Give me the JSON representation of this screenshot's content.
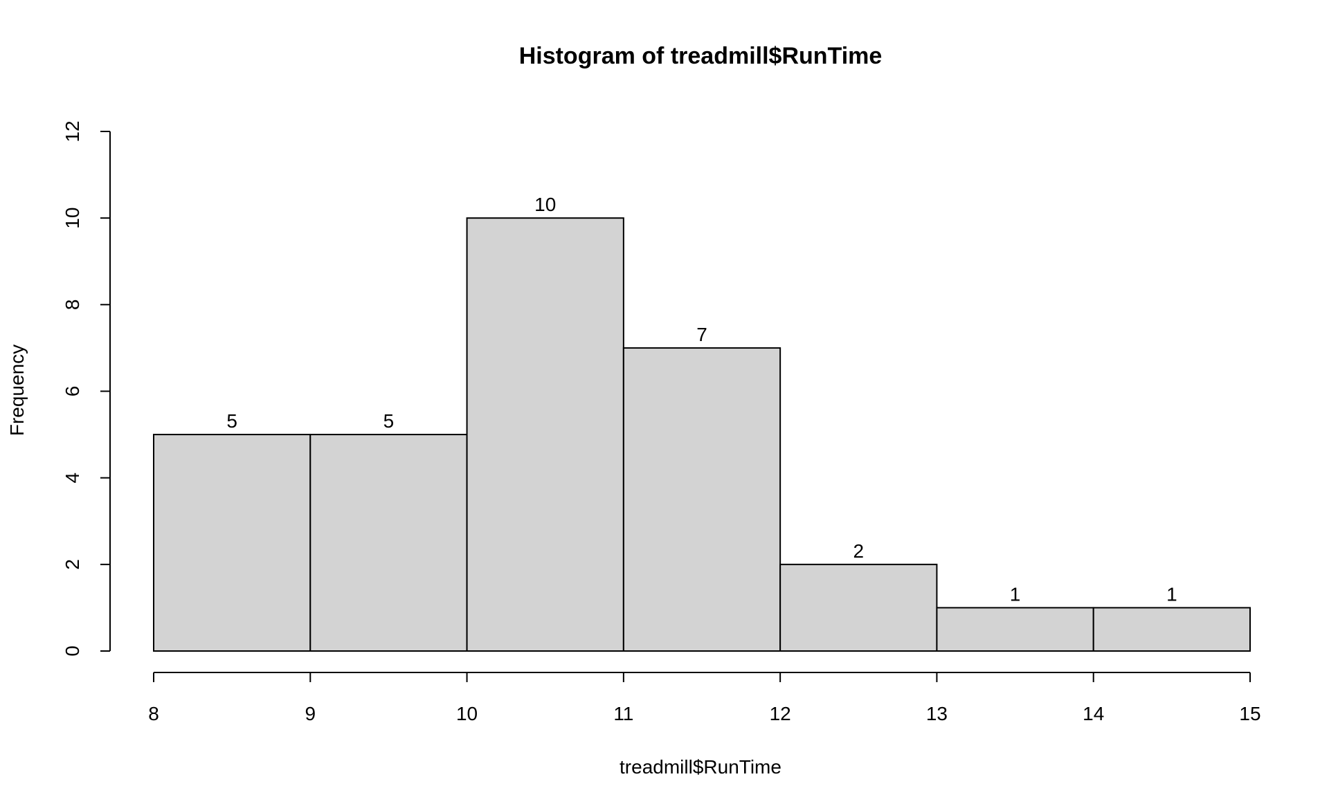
{
  "chart_data": {
    "type": "bar",
    "title": "Histogram of treadmill$RunTime",
    "xlabel": "treadmill$RunTime",
    "ylabel": "Frequency",
    "bins": [
      {
        "start": 8,
        "end": 9,
        "count": 5
      },
      {
        "start": 9,
        "end": 10,
        "count": 5
      },
      {
        "start": 10,
        "end": 11,
        "count": 10
      },
      {
        "start": 11,
        "end": 12,
        "count": 7
      },
      {
        "start": 12,
        "end": 13,
        "count": 2
      },
      {
        "start": 13,
        "end": 14,
        "count": 1
      },
      {
        "start": 14,
        "end": 15,
        "count": 1
      }
    ],
    "xlim": [
      8,
      15
    ],
    "ylim": [
      0,
      12
    ],
    "x_ticks": [
      "8",
      "9",
      "10",
      "11",
      "12",
      "13",
      "14",
      "15"
    ],
    "y_ticks": [
      "0",
      "2",
      "4",
      "6",
      "8",
      "10",
      "12"
    ],
    "bar_color": "#D3D3D3",
    "grid": false,
    "legend": "none"
  }
}
